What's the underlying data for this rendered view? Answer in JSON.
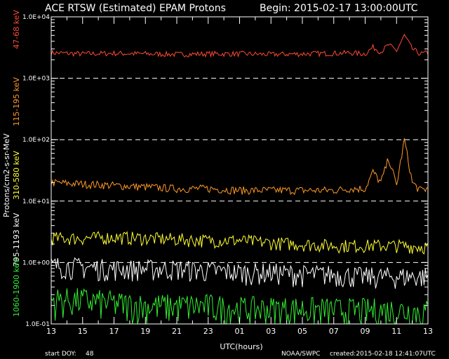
{
  "header": {
    "title": "ACE RTSW (Estimated) EPAM Protons",
    "begin": "Begin: 2015-02-17 13:00:00UTC"
  },
  "footer": {
    "start_doy_label": "start DOY:",
    "start_doy_value": "48",
    "credit": "NOAA/SWPC",
    "created": "created:2015-02-18 12:41:07UTC"
  },
  "colors": {
    "background": "#000000",
    "foreground": "#ffffff",
    "grid": "#ffffff"
  },
  "chart_data": {
    "type": "line",
    "xlabel": "UTC(hours)",
    "ylabel": "Protons/cm2-s-sr-MeV",
    "x_tick_labels": [
      "13",
      "15",
      "17",
      "19",
      "21",
      "23",
      "01",
      "03",
      "05",
      "07",
      "09",
      "11",
      "13"
    ],
    "x_range_hours": [
      0,
      24
    ],
    "y_scale": "log",
    "ylim": [
      0.1,
      10000
    ],
    "y_tick_labels": [
      "1.0E-01",
      "1.0E+00",
      "1.0E+01",
      "1.0E+02",
      "1.0E+03",
      "1.0E+04"
    ],
    "y_tick_values": [
      0.1,
      1,
      10,
      100,
      1000,
      10000
    ],
    "grid": "dashed horizontal at decades",
    "legend_placement": "left, vertical",
    "series": [
      {
        "name": "47-68 keV",
        "color": "#ff4a33",
        "x_hours": [
          0,
          2,
          4,
          6,
          8,
          10,
          12,
          14,
          16,
          18,
          19,
          20,
          20.5,
          21,
          21.5,
          22,
          22.5,
          23,
          23.5,
          24
        ],
        "values": [
          2600,
          2500,
          2550,
          2500,
          2450,
          2500,
          2500,
          2450,
          2500,
          2550,
          2600,
          2500,
          3200,
          2700,
          3500,
          2800,
          5000,
          3000,
          2500,
          2600
        ],
        "noise_pct": 10
      },
      {
        "name": "115-195 keV",
        "color": "#ff9a26",
        "x_hours": [
          0,
          2,
          4,
          6,
          8,
          10,
          12,
          14,
          16,
          18,
          19,
          20,
          20.5,
          21,
          21.5,
          22,
          22.5,
          23,
          23.5,
          24
        ],
        "values": [
          20,
          19,
          18,
          17,
          16,
          16,
          15,
          15,
          15,
          15,
          16,
          16,
          30,
          20,
          50,
          18,
          100,
          20,
          15,
          16
        ],
        "noise_pct": 15
      },
      {
        "name": "310-580 keV",
        "color": "#ffff33",
        "x_hours": [
          0,
          2,
          4,
          6,
          8,
          10,
          12,
          14,
          16,
          18,
          20,
          22,
          24
        ],
        "values": [
          2.5,
          2.5,
          2.6,
          2.5,
          2.4,
          2.3,
          2.3,
          2.1,
          2.0,
          1.9,
          1.9,
          1.9,
          1.8
        ],
        "noise_pct": 25
      },
      {
        "name": "795-1193 keV",
        "color": "#ffffff",
        "x_hours": [
          0,
          2,
          4,
          6,
          8,
          10,
          12,
          14,
          16,
          18,
          20,
          22,
          24
        ],
        "values": [
          0.9,
          0.85,
          0.8,
          0.8,
          0.8,
          0.75,
          0.7,
          0.7,
          0.65,
          0.65,
          0.6,
          0.6,
          0.6
        ],
        "noise_pct": 40
      },
      {
        "name": "1060-1900 keV",
        "color": "#33ee33",
        "x_hours": [
          0,
          2,
          4,
          6,
          8,
          10,
          12,
          14,
          16,
          18,
          20,
          22,
          24
        ],
        "values": [
          0.25,
          0.25,
          0.22,
          0.2,
          0.2,
          0.2,
          0.18,
          0.18,
          0.18,
          0.17,
          0.17,
          0.17,
          0.16
        ],
        "noise_pct": 55
      }
    ]
  }
}
